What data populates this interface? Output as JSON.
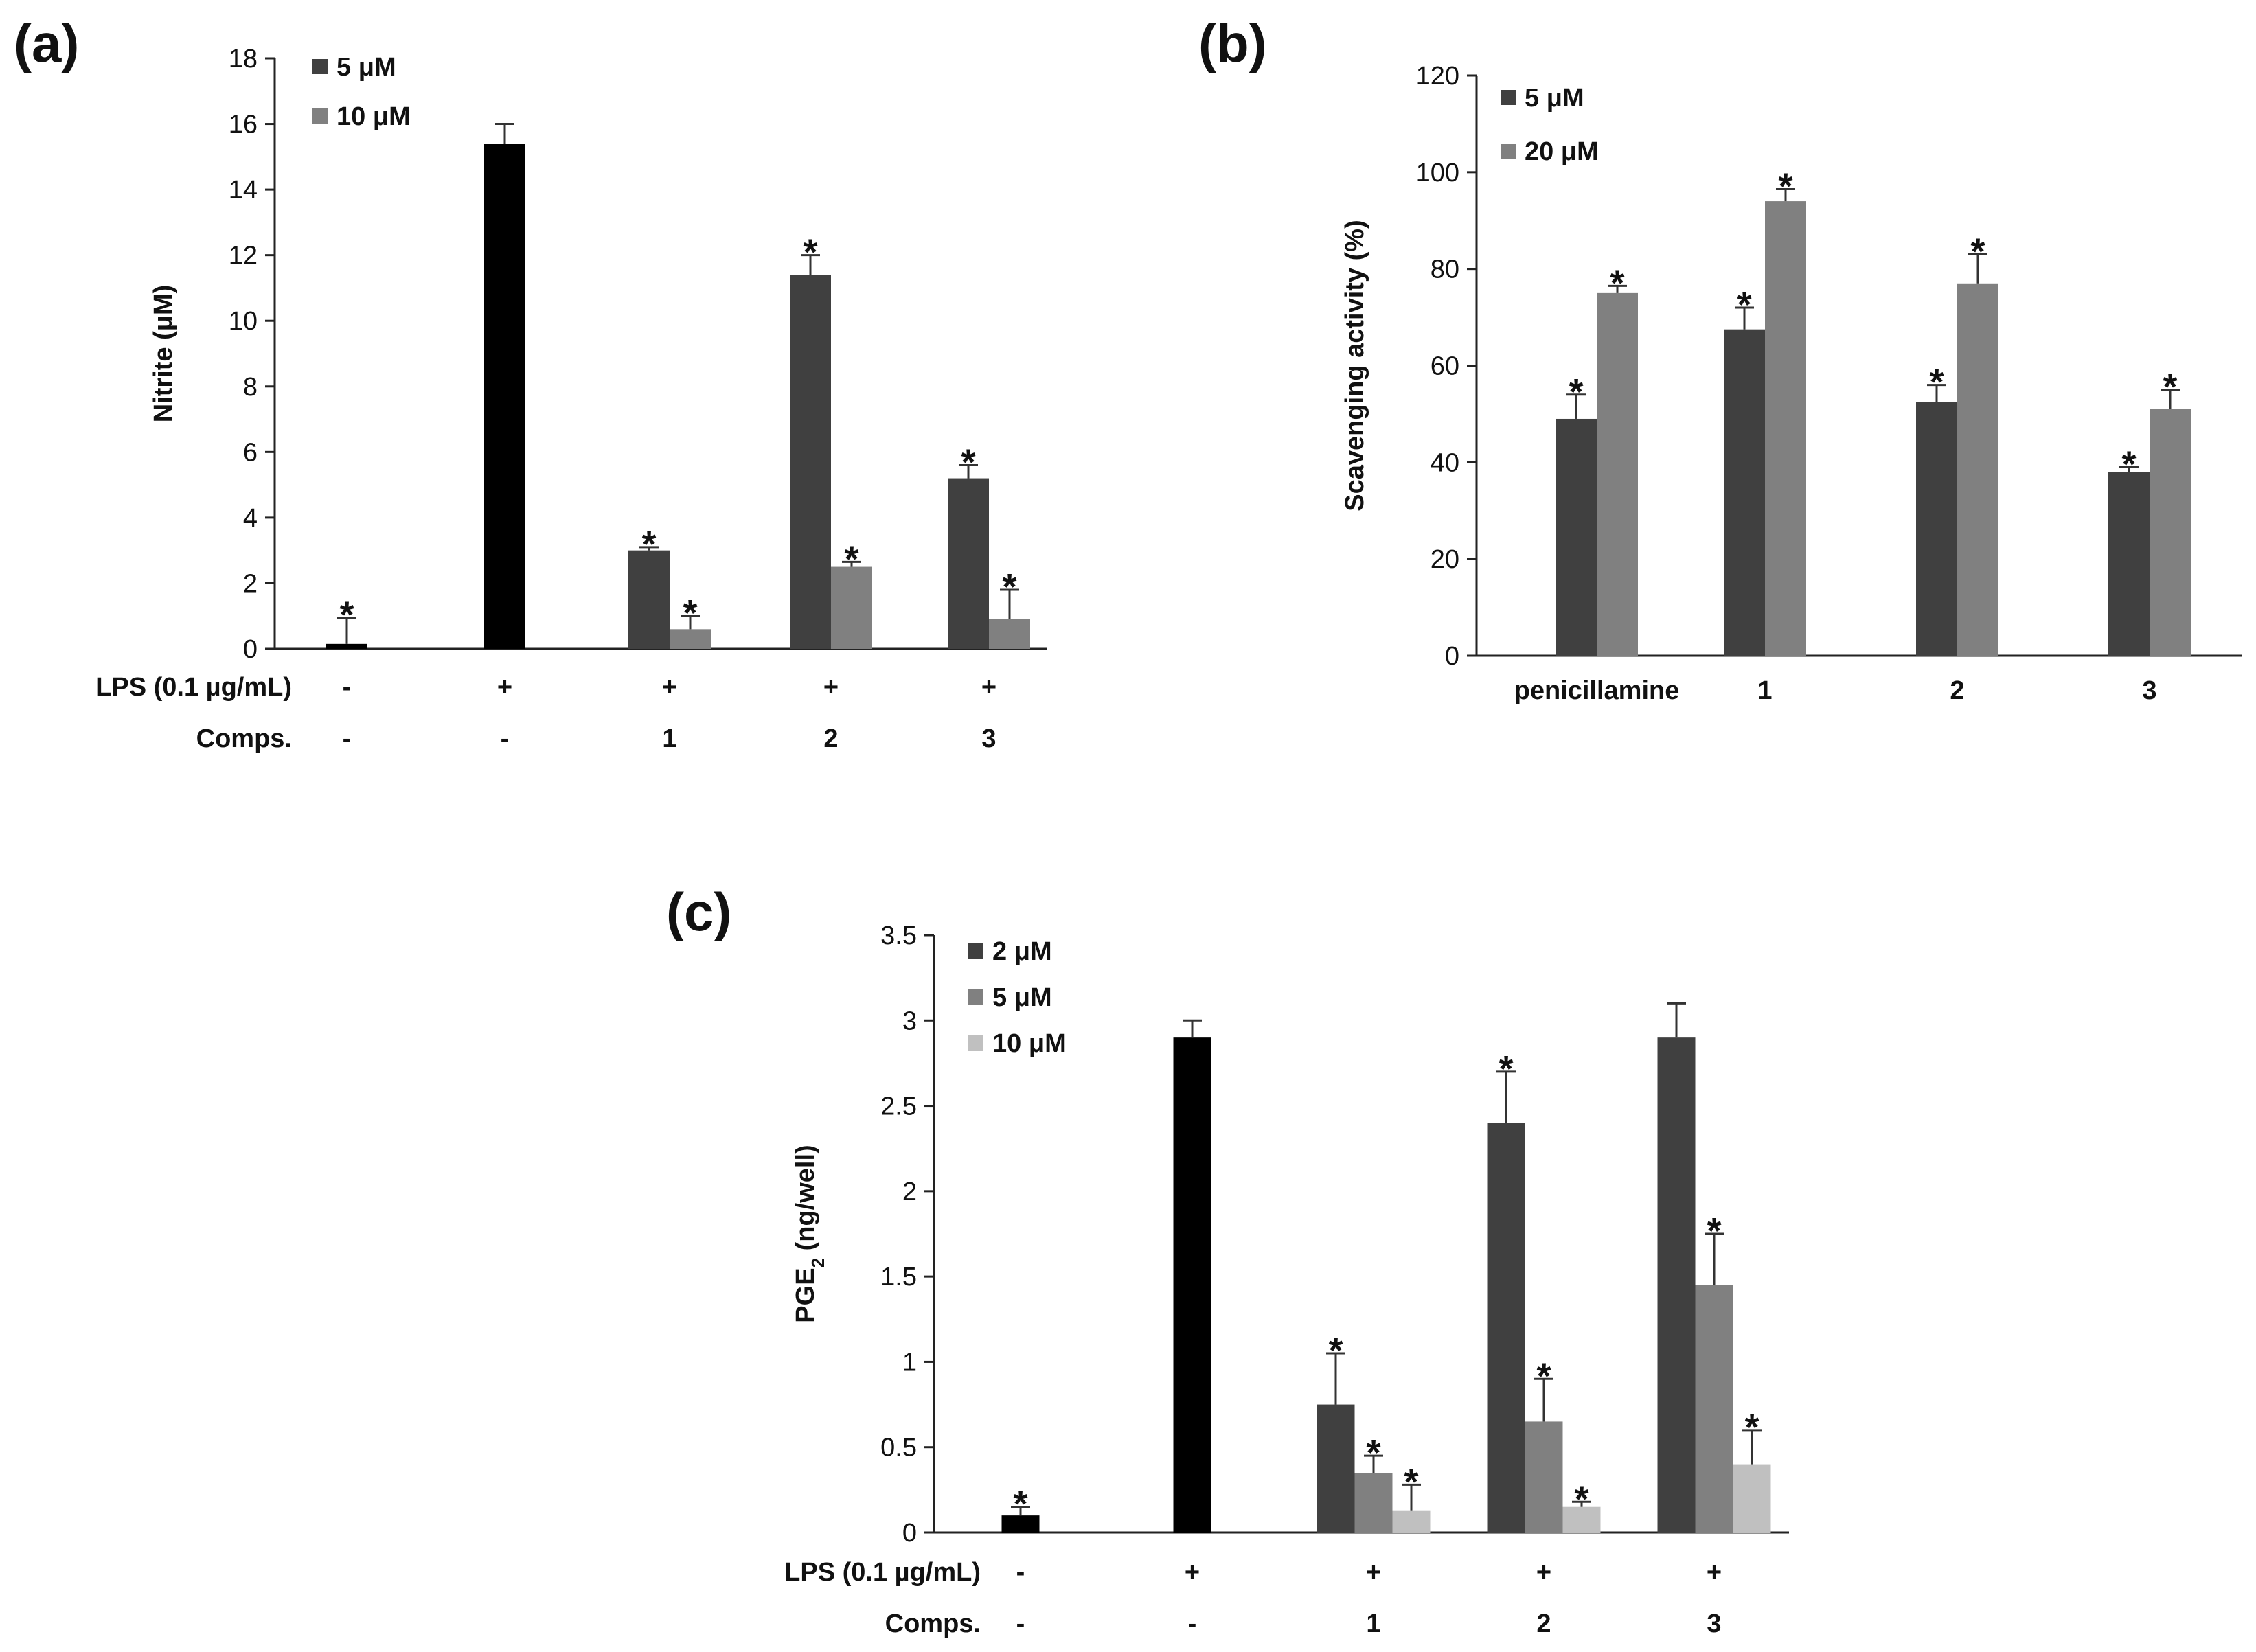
{
  "chart_data": [
    {
      "id": "a",
      "panel_label": "(a)",
      "type": "bar",
      "ylabel": "Nitrite (μM)",
      "ylim": [
        0,
        18
      ],
      "yticks": [
        "0",
        "2",
        "4",
        "6",
        "8",
        "10",
        "12",
        "14",
        "16",
        "18"
      ],
      "legend": {
        "placement": "top-left",
        "entries": [
          "5 μM",
          "10 μM"
        ]
      },
      "colors": {
        "s0": "#404040",
        "s1": "#808080",
        "control": "#000000"
      },
      "groups": [
        {
          "bars": [
            {
              "value": 0.15,
              "error": 0.8,
              "color": "#000000",
              "star": "*"
            }
          ]
        },
        {
          "bars": [
            {
              "value": 15.4,
              "error": 0.6,
              "color": "#000000",
              "star": ""
            }
          ]
        },
        {
          "bars": [
            {
              "value": 3.0,
              "error": 0.1,
              "color": "#404040",
              "star": "*"
            },
            {
              "value": 0.6,
              "error": 0.4,
              "color": "#808080",
              "star": "*"
            }
          ]
        },
        {
          "bars": [
            {
              "value": 11.4,
              "error": 0.6,
              "color": "#404040",
              "star": "*"
            },
            {
              "value": 2.5,
              "error": 0.15,
              "color": "#808080",
              "star": "*"
            }
          ]
        },
        {
          "bars": [
            {
              "value": 5.2,
              "error": 0.4,
              "color": "#404040",
              "star": "*"
            },
            {
              "value": 0.9,
              "error": 0.9,
              "color": "#808080",
              "star": "*"
            }
          ]
        }
      ],
      "rows": [
        {
          "label": "LPS (0.1 µg/mL)",
          "values": [
            "-",
            "+",
            "+",
            "+",
            "+"
          ]
        },
        {
          "label": "Comps.",
          "values": [
            "-",
            "-",
            "1",
            "2",
            "3"
          ]
        }
      ]
    },
    {
      "id": "b",
      "panel_label": "(b)",
      "type": "bar",
      "ylabel": "Scavenging activity (%)",
      "ylim": [
        0,
        120
      ],
      "yticks": [
        "0",
        "20",
        "40",
        "60",
        "80",
        "100",
        "120"
      ],
      "legend": {
        "placement": "top-left",
        "entries": [
          "5 μM",
          "20 μM"
        ]
      },
      "colors": {
        "s0": "#404040",
        "s1": "#808080"
      },
      "categories": [
        "penicillamine",
        "1",
        "2",
        "3"
      ],
      "groups": [
        {
          "bars": [
            {
              "value": 49,
              "error": 5,
              "color": "#404040",
              "star": "*"
            },
            {
              "value": 75,
              "error": 1.5,
              "color": "#808080",
              "star": "*"
            }
          ]
        },
        {
          "bars": [
            {
              "value": 67.5,
              "error": 4.5,
              "color": "#404040",
              "star": "*"
            },
            {
              "value": 94,
              "error": 2.5,
              "color": "#808080",
              "star": "*"
            }
          ]
        },
        {
          "bars": [
            {
              "value": 52.5,
              "error": 3.5,
              "color": "#404040",
              "star": "*"
            },
            {
              "value": 77,
              "error": 6,
              "color": "#808080",
              "star": "*"
            }
          ]
        },
        {
          "bars": [
            {
              "value": 38,
              "error": 1,
              "color": "#404040",
              "star": "*"
            },
            {
              "value": 51,
              "error": 4,
              "color": "#808080",
              "star": "*"
            }
          ]
        }
      ]
    },
    {
      "id": "c",
      "panel_label": "(c)",
      "type": "bar",
      "ylabel": "PGE",
      "ylabel_sub": "2",
      "ylabel_tail": " (ng/well)",
      "ylim": [
        0,
        3.5
      ],
      "yticks": [
        "0",
        "0.5",
        "1",
        "1.5",
        "2",
        "2.5",
        "3",
        "3.5"
      ],
      "legend": {
        "placement": "top-left",
        "entries": [
          "2 μM",
          "5 μM",
          "10 μM"
        ]
      },
      "colors": {
        "s0": "#404040",
        "s1": "#808080",
        "s2": "#c0c0c0",
        "control": "#000000"
      },
      "groups": [
        {
          "bars": [
            {
              "value": 0.1,
              "error": 0.05,
              "color": "#000000",
              "star": "*"
            }
          ]
        },
        {
          "bars": [
            {
              "value": 2.9,
              "error": 0.1,
              "color": "#000000",
              "star": ""
            }
          ]
        },
        {
          "bars": [
            {
              "value": 0.75,
              "error": 0.3,
              "color": "#404040",
              "star": "*"
            },
            {
              "value": 0.35,
              "error": 0.1,
              "color": "#808080",
              "star": "*"
            },
            {
              "value": 0.13,
              "error": 0.15,
              "color": "#c0c0c0",
              "star": "*"
            }
          ]
        },
        {
          "bars": [
            {
              "value": 2.4,
              "error": 0.3,
              "color": "#404040",
              "star": "*"
            },
            {
              "value": 0.65,
              "error": 0.25,
              "color": "#808080",
              "star": "*"
            },
            {
              "value": 0.15,
              "error": 0.03,
              "color": "#c0c0c0",
              "star": "*"
            }
          ]
        },
        {
          "bars": [
            {
              "value": 2.9,
              "error": 0.2,
              "color": "#404040",
              "star": ""
            },
            {
              "value": 1.45,
              "error": 0.3,
              "color": "#808080",
              "star": "*"
            },
            {
              "value": 0.4,
              "error": 0.2,
              "color": "#c0c0c0",
              "star": "*"
            }
          ]
        }
      ],
      "rows": [
        {
          "label": "LPS (0.1 µg/mL)",
          "values": [
            "-",
            "+",
            "+",
            "+",
            "+"
          ]
        },
        {
          "label": "Comps.",
          "values": [
            "-",
            "-",
            "1",
            "2",
            "3"
          ]
        }
      ]
    }
  ]
}
